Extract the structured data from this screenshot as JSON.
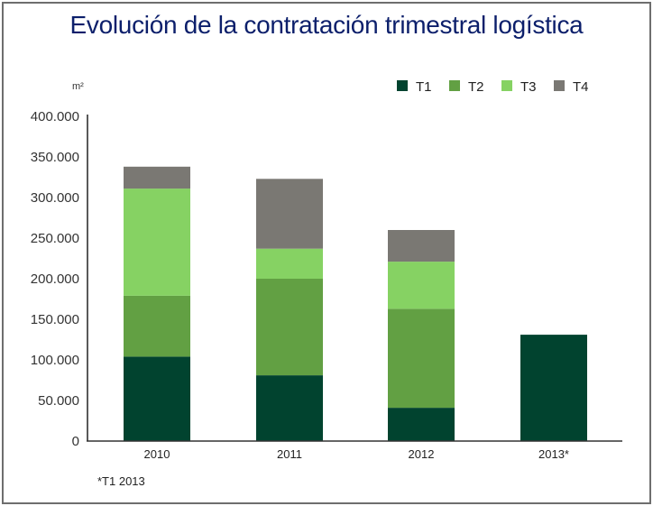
{
  "chart_data": {
    "type": "bar",
    "stacked": true,
    "title": "Evolución de la contratación trimestral logística",
    "ylabel": "m²",
    "xlabel": "",
    "categories": [
      "2010",
      "2011",
      "2012",
      "2013*"
    ],
    "series": [
      {
        "name": "T1",
        "color": "#01432f",
        "values": [
          104000,
          81000,
          41000,
          131000
        ]
      },
      {
        "name": "T2",
        "color": "#62a043",
        "values": [
          75000,
          119000,
          122000,
          0
        ]
      },
      {
        "name": "T3",
        "color": "#86d263",
        "values": [
          132000,
          37000,
          58000,
          0
        ]
      },
      {
        "name": "T4",
        "color": "#7a7873",
        "values": [
          27000,
          86000,
          39000,
          0
        ]
      }
    ],
    "ylim": [
      0,
      400000
    ],
    "yticks": [
      0,
      50000,
      100000,
      150000,
      200000,
      250000,
      300000,
      350000,
      400000
    ],
    "ytick_labels": [
      "0",
      "50.000",
      "100.000",
      "150.000",
      "200.000",
      "250.000",
      "300.000",
      "350.000",
      "400.000"
    ],
    "legend_position": "top-right",
    "grid": false,
    "footnote": "*T1 2013"
  }
}
